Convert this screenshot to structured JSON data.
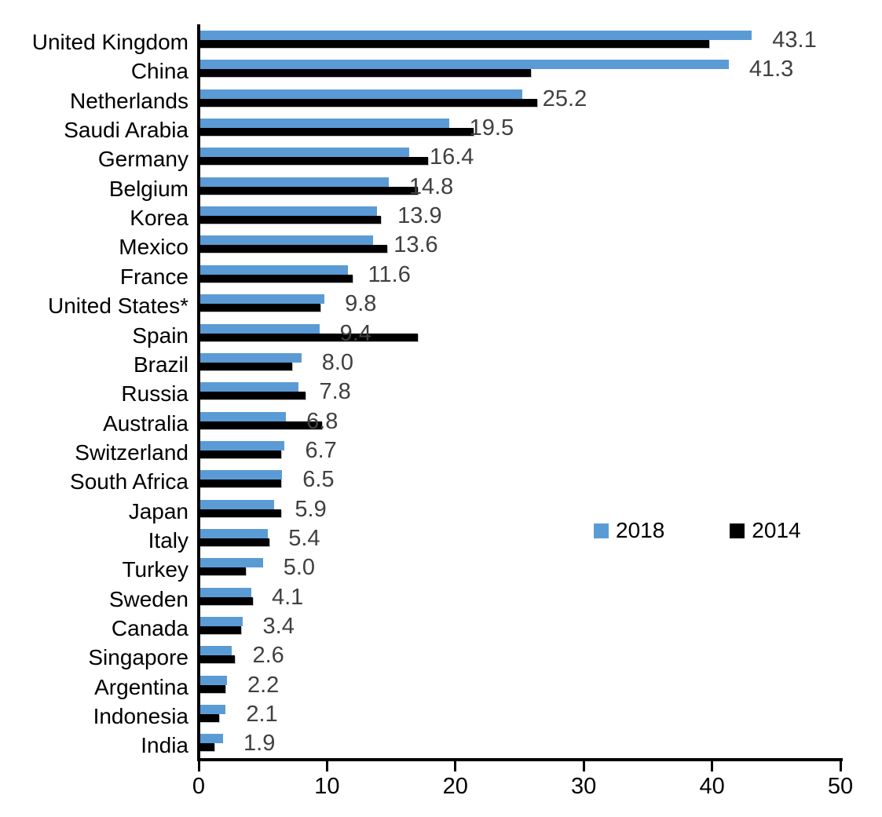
{
  "chart_data": {
    "type": "bar",
    "orientation": "horizontal",
    "title": "",
    "xlabel": "",
    "ylabel": "",
    "xlim": [
      0,
      50
    ],
    "x_ticks": [
      "0",
      "10",
      "20",
      "30",
      "40",
      "50"
    ],
    "grid": false,
    "categories": [
      "United Kingdom",
      "China",
      "Netherlands",
      "Saudi Arabia",
      "Germany",
      "Belgium",
      "Korea",
      "Mexico",
      "France",
      "United States*",
      "Spain",
      "Brazil",
      "Russia",
      "Australia",
      "Switzerland",
      "South Africa",
      "Japan",
      "Italy",
      "Turkey",
      "Sweden",
      "Canada",
      "Singapore",
      "Argentina",
      "Indonesia",
      "India"
    ],
    "series": [
      {
        "name": "2018",
        "color": "#5B9BD5",
        "values": [
          43.1,
          41.3,
          25.2,
          19.5,
          16.4,
          14.8,
          13.9,
          13.6,
          11.6,
          9.8,
          9.4,
          8.0,
          7.8,
          6.8,
          6.7,
          6.5,
          5.9,
          5.4,
          5.0,
          4.1,
          3.4,
          2.6,
          2.2,
          2.1,
          1.9
        ]
      },
      {
        "name": "2014",
        "color": "#000000",
        "values": [
          39.8,
          25.9,
          26.4,
          21.4,
          17.9,
          17.1,
          14.2,
          14.7,
          12.0,
          9.5,
          17.1,
          7.3,
          8.3,
          9.6,
          6.4,
          6.4,
          6.4,
          5.5,
          3.7,
          4.2,
          3.3,
          2.8,
          2.1,
          1.6,
          1.2
        ]
      }
    ],
    "data_labels": {
      "labeled_series": "2018",
      "color": "#404040",
      "values": [
        "43.1",
        "41.3",
        "25.2",
        "19.5",
        "16.4",
        "14.8",
        "13.9",
        "13.6",
        "11.6",
        "9.8",
        "9.4",
        "8.0",
        "7.8",
        "6.8",
        "6.7",
        "6.5",
        "5.9",
        "5.4",
        "5.0",
        "4.1",
        "3.4",
        "2.6",
        "2.2",
        "2.1",
        "1.9"
      ]
    },
    "legend": {
      "position": "middle-right",
      "entries": [
        {
          "label": "2018",
          "color": "#5B9BD5"
        },
        {
          "label": "2014",
          "color": "#000000"
        }
      ]
    }
  }
}
